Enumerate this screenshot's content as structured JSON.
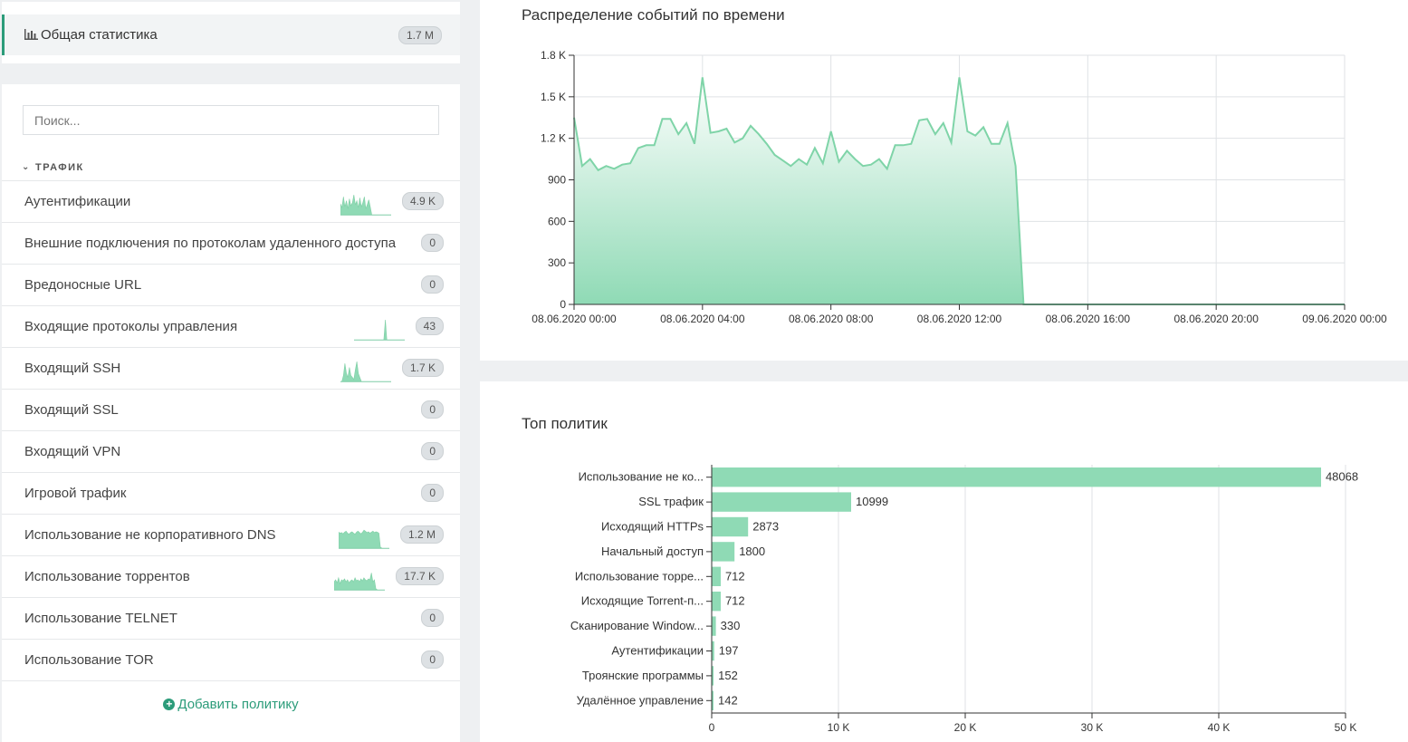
{
  "summary": {
    "icon": "bar-chart-icon",
    "label": "Общая статистика",
    "count": "1.7 M"
  },
  "search": {
    "placeholder": "Поиск...",
    "value": ""
  },
  "group": {
    "label": "ТРАФИК",
    "icon": "chevron-down-icon"
  },
  "policies": [
    {
      "name": "Аутентификации",
      "count": "4.9 K",
      "spark": [
        0.55,
        0.35,
        0.9,
        0.4,
        0.7,
        0.3,
        0.8,
        0.45,
        0.6,
        1.0,
        0.5,
        0.7,
        0.35,
        0.85,
        0.4,
        0.6,
        0.9,
        0.3,
        0.5,
        0.75,
        0.4,
        0,
        0,
        0,
        0,
        0,
        0,
        0,
        0,
        0,
        0,
        0,
        0,
        0,
        0
      ]
    },
    {
      "name": "Внешние подключения по протоколам удаленного доступа",
      "count": "0"
    },
    {
      "name": "Вредоносные URL",
      "count": "0"
    },
    {
      "name": "Входящие протоколы управления",
      "count": "43",
      "spark": [
        0,
        0,
        0,
        0,
        0,
        0,
        0,
        0,
        0,
        0,
        0,
        0,
        0,
        0,
        0,
        0,
        0,
        0,
        0,
        0,
        0,
        1.0,
        0,
        0,
        0,
        0,
        0,
        0,
        0,
        0,
        0,
        0,
        0,
        0,
        0
      ]
    },
    {
      "name": "Входящий SSH",
      "count": "1.7 K",
      "spark": [
        0,
        0,
        0.3,
        0.9,
        0.4,
        0.2,
        0.7,
        0.3,
        0.2,
        0.1,
        0.6,
        1.0,
        0.4,
        0.2,
        0,
        0,
        0,
        0,
        0,
        0,
        0,
        0,
        0,
        0,
        0,
        0,
        0,
        0,
        0,
        0,
        0,
        0,
        0,
        0,
        0
      ]
    },
    {
      "name": "Входящий SSL",
      "count": "0"
    },
    {
      "name": "Входящий VPN",
      "count": "0"
    },
    {
      "name": "Игровой трафик",
      "count": "0"
    },
    {
      "name": "Использование не корпоративного DNS",
      "count": "1.2 M",
      "spark": [
        0.8,
        0.75,
        0.78,
        0.72,
        0.8,
        0.85,
        0.75,
        0.7,
        0.78,
        0.82,
        0.75,
        0.7,
        0.8,
        0.85,
        0.78,
        0.72,
        0.8,
        0.9,
        0.85,
        0.78,
        0.82,
        0.75,
        0.8,
        0.85,
        0.78,
        0.82,
        0.8,
        0.75,
        0.05,
        0,
        0,
        0,
        0,
        0,
        0
      ]
    },
    {
      "name": "Использование торрентов",
      "count": "17.7 K",
      "spark": [
        0.4,
        0.5,
        0.35,
        0.6,
        0.3,
        0.5,
        0.45,
        0.55,
        0.4,
        0.5,
        0.35,
        0.45,
        0.5,
        0.4,
        0.6,
        0.45,
        0.5,
        0.4,
        0.55,
        0.45,
        0.6,
        0.5,
        0.45,
        0.55,
        0.5,
        0.85,
        0.4,
        0.5,
        0.05,
        0,
        0,
        0,
        0,
        0,
        0
      ]
    },
    {
      "name": "Использование TELNET",
      "count": "0"
    },
    {
      "name": "Использование TOR",
      "count": "0"
    }
  ],
  "add_policy": {
    "label": "Добавить политику",
    "icon": "plus-circle-icon"
  },
  "colors": {
    "accent": "#2c9c7a",
    "fill": "#8fdab5",
    "line": "#7fd4a8"
  },
  "chart_data": [
    {
      "type": "area",
      "title": "Распределение событий по времени",
      "xlabel": "",
      "ylabel": "",
      "ylim": [
        0,
        1800
      ],
      "y_ticks": [
        0,
        300,
        600,
        900,
        1200,
        1500,
        1800
      ],
      "y_tick_labels": [
        "0",
        "300",
        "600",
        "900",
        "1.2 K",
        "1.5 K",
        "1.8 K"
      ],
      "x_ticks": [
        "08.06.2020 00:00",
        "08.06.2020 04:00",
        "08.06.2020 08:00",
        "08.06.2020 12:00",
        "08.06.2020 16:00",
        "08.06.2020 20:00",
        "09.06.2020 00:00"
      ],
      "x_range_hours": [
        0,
        24
      ],
      "grid": true,
      "x_hours": [
        0,
        0.25,
        0.5,
        0.75,
        1,
        1.25,
        1.5,
        1.75,
        2,
        2.25,
        2.5,
        2.75,
        3,
        3.25,
        3.5,
        3.75,
        4,
        4.25,
        4.5,
        4.75,
        5,
        5.25,
        5.5,
        5.75,
        6,
        6.25,
        6.5,
        6.75,
        7,
        7.25,
        7.5,
        7.75,
        8,
        8.25,
        8.5,
        8.75,
        9,
        9.25,
        9.5,
        9.75,
        10,
        10.25,
        10.5,
        10.75,
        11,
        11.25,
        11.5,
        11.75,
        12,
        12.25,
        12.5,
        12.75,
        13,
        13.25,
        13.5,
        13.75,
        14,
        16,
        20,
        24
      ],
      "values": [
        1350,
        1000,
        1050,
        970,
        1000,
        980,
        1010,
        1020,
        1130,
        1150,
        1150,
        1340,
        1340,
        1230,
        1310,
        1160,
        1640,
        1240,
        1250,
        1270,
        1170,
        1200,
        1290,
        1230,
        1160,
        1080,
        1040,
        1000,
        1050,
        1010,
        1130,
        1020,
        1250,
        1030,
        1110,
        1050,
        1000,
        1010,
        1050,
        980,
        1150,
        1150,
        1160,
        1330,
        1340,
        1230,
        1310,
        1170,
        1640,
        1250,
        1220,
        1280,
        1160,
        1160,
        1310,
        1000,
        0,
        0,
        0,
        0
      ]
    },
    {
      "type": "bar",
      "orientation": "horizontal",
      "title": "Топ политик",
      "xlabel": "",
      "ylabel": "",
      "xlim": [
        0,
        50000
      ],
      "x_ticks": [
        0,
        10000,
        20000,
        30000,
        40000,
        50000
      ],
      "x_tick_labels": [
        "0",
        "10 K",
        "20 K",
        "30 K",
        "40 K",
        "50 K"
      ],
      "grid": true,
      "categories": [
        "Использование не ко...",
        "SSL трафик",
        "Исходящий HTTPs",
        "Начальный доступ",
        "Использование торре...",
        "Исходящие Torrent-п...",
        "Сканирование Window...",
        "Аутентификации",
        "Троянские программы",
        "Удалённое управление"
      ],
      "values": [
        48068,
        10999,
        2873,
        1800,
        712,
        712,
        330,
        197,
        152,
        142
      ],
      "value_labels": [
        "48068",
        "10999",
        "2873",
        "1800",
        "712",
        "712",
        "330",
        "197",
        "152",
        "142"
      ]
    }
  ]
}
